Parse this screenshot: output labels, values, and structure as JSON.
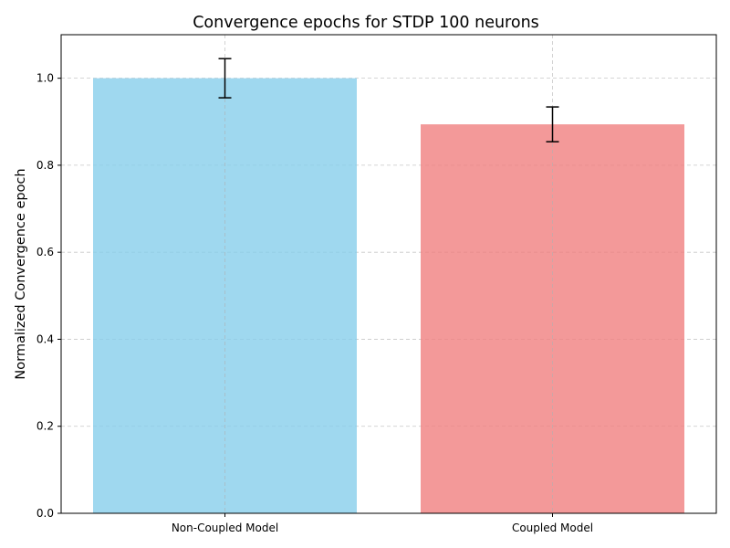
{
  "chart_data": {
    "type": "bar",
    "title": "Convergence epochs for STDP 100 neurons",
    "xlabel": "",
    "ylabel": "Normalized Convergence epoch",
    "categories": [
      "Non-Coupled Model",
      "Coupled Model"
    ],
    "values": [
      1.0,
      0.894
    ],
    "errors": [
      0.045,
      0.04
    ],
    "colors": [
      "#87ceeb",
      "#f08080"
    ],
    "ylim": [
      0,
      1.1
    ],
    "yticks": [
      0.0,
      0.2,
      0.4,
      0.6,
      0.8,
      1.0
    ],
    "ytick_labels": [
      "0.0",
      "0.2",
      "0.4",
      "0.6",
      "0.8",
      "1.0"
    ],
    "grid": true,
    "grid_style": "dashed"
  }
}
